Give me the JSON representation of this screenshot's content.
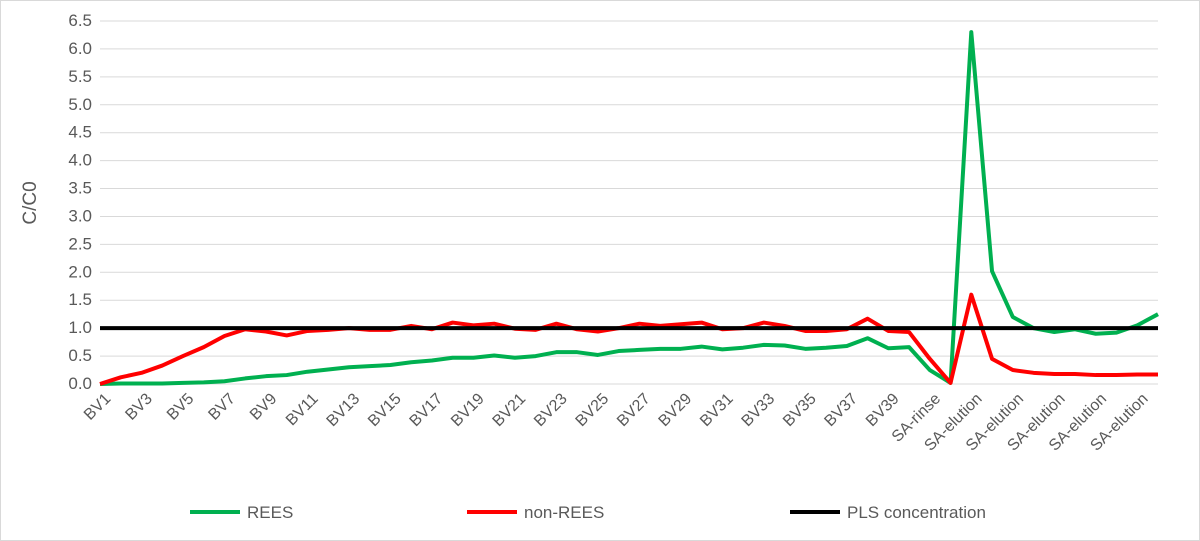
{
  "chart_data": {
    "type": "line",
    "y_label": "C/C0",
    "categories": [
      "BV1",
      null,
      "BV3",
      null,
      "BV5",
      null,
      "BV7",
      null,
      "BV9",
      null,
      "BV11",
      null,
      "BV13",
      null,
      "BV15",
      null,
      "BV17",
      null,
      "BV19",
      null,
      "BV21",
      null,
      "BV23",
      null,
      "BV25",
      null,
      "BV27",
      null,
      "BV29",
      null,
      "BV31",
      null,
      "BV33",
      null,
      "BV35",
      null,
      "BV37",
      null,
      "BV39",
      null,
      "SA-rinse",
      null,
      "SA-elution",
      null,
      "SA-elution",
      null,
      "SA-elution",
      null,
      "SA-elution",
      null,
      "SA-elution",
      null
    ],
    "series": [
      {
        "name": "REES",
        "color": "#00b050",
        "values": [
          0,
          0.01,
          0.01,
          0.01,
          0.02,
          0.03,
          0.05,
          0.1,
          0.14,
          0.16,
          0.22,
          0.26,
          0.3,
          0.32,
          0.34,
          0.39,
          0.42,
          0.47,
          0.47,
          0.51,
          0.47,
          0.5,
          0.57,
          0.57,
          0.52,
          0.59,
          0.61,
          0.63,
          0.63,
          0.67,
          0.62,
          0.65,
          0.7,
          0.69,
          0.63,
          0.65,
          0.68,
          0.82,
          0.64,
          0.66,
          0.25,
          0.02,
          6.3,
          2.02,
          1.2,
          1.0,
          0.93,
          0.98,
          0.9,
          0.92,
          1.05,
          1.25
        ]
      },
      {
        "name": "non-REES",
        "color": "#ff0000",
        "values": [
          0,
          0.12,
          0.2,
          0.33,
          0.5,
          0.66,
          0.86,
          0.98,
          0.94,
          0.87,
          0.95,
          0.97,
          1.0,
          0.97,
          0.97,
          1.04,
          0.98,
          1.1,
          1.05,
          1.08,
          0.99,
          0.97,
          1.08,
          0.98,
          0.94,
          1.0,
          1.08,
          1.04,
          1.07,
          1.1,
          0.98,
          1.0,
          1.1,
          1.04,
          0.95,
          0.95,
          0.98,
          1.17,
          0.95,
          0.93,
          0.45,
          0.02,
          1.6,
          0.45,
          0.25,
          0.2,
          0.18,
          0.18,
          0.16,
          0.16,
          0.17,
          0.17
        ]
      },
      {
        "name": "PLS concentration",
        "color": "#000000",
        "values": [
          1,
          1,
          1,
          1,
          1,
          1,
          1,
          1,
          1,
          1,
          1,
          1,
          1,
          1,
          1,
          1,
          1,
          1,
          1,
          1,
          1,
          1,
          1,
          1,
          1,
          1,
          1,
          1,
          1,
          1,
          1,
          1,
          1,
          1,
          1,
          1,
          1,
          1,
          1,
          1,
          1,
          1,
          1,
          1,
          1,
          1,
          1,
          1,
          1,
          1,
          1,
          1
        ]
      }
    ],
    "ylim": [
      0,
      6.5
    ],
    "yticks": [
      {
        "value": 0,
        "label": "0.0"
      },
      {
        "value": 0.5,
        "label": "0.5"
      },
      {
        "value": 1,
        "label": "1.0"
      },
      {
        "value": 1.5,
        "label": "1.5"
      },
      {
        "value": 2,
        "label": "2.0"
      },
      {
        "value": 2.5,
        "label": "2.5"
      },
      {
        "value": 3,
        "label": "3.0"
      },
      {
        "value": 3.5,
        "label": "3.5"
      },
      {
        "value": 4,
        "label": "4.0"
      },
      {
        "value": 4.5,
        "label": "4.5"
      },
      {
        "value": 5,
        "label": "5.0"
      },
      {
        "value": 5.5,
        "label": "5.5"
      },
      {
        "value": 6,
        "label": "6.0"
      },
      {
        "value": 6.5,
        "label": "6.5"
      }
    ],
    "grid": true,
    "legend": "bottom"
  }
}
